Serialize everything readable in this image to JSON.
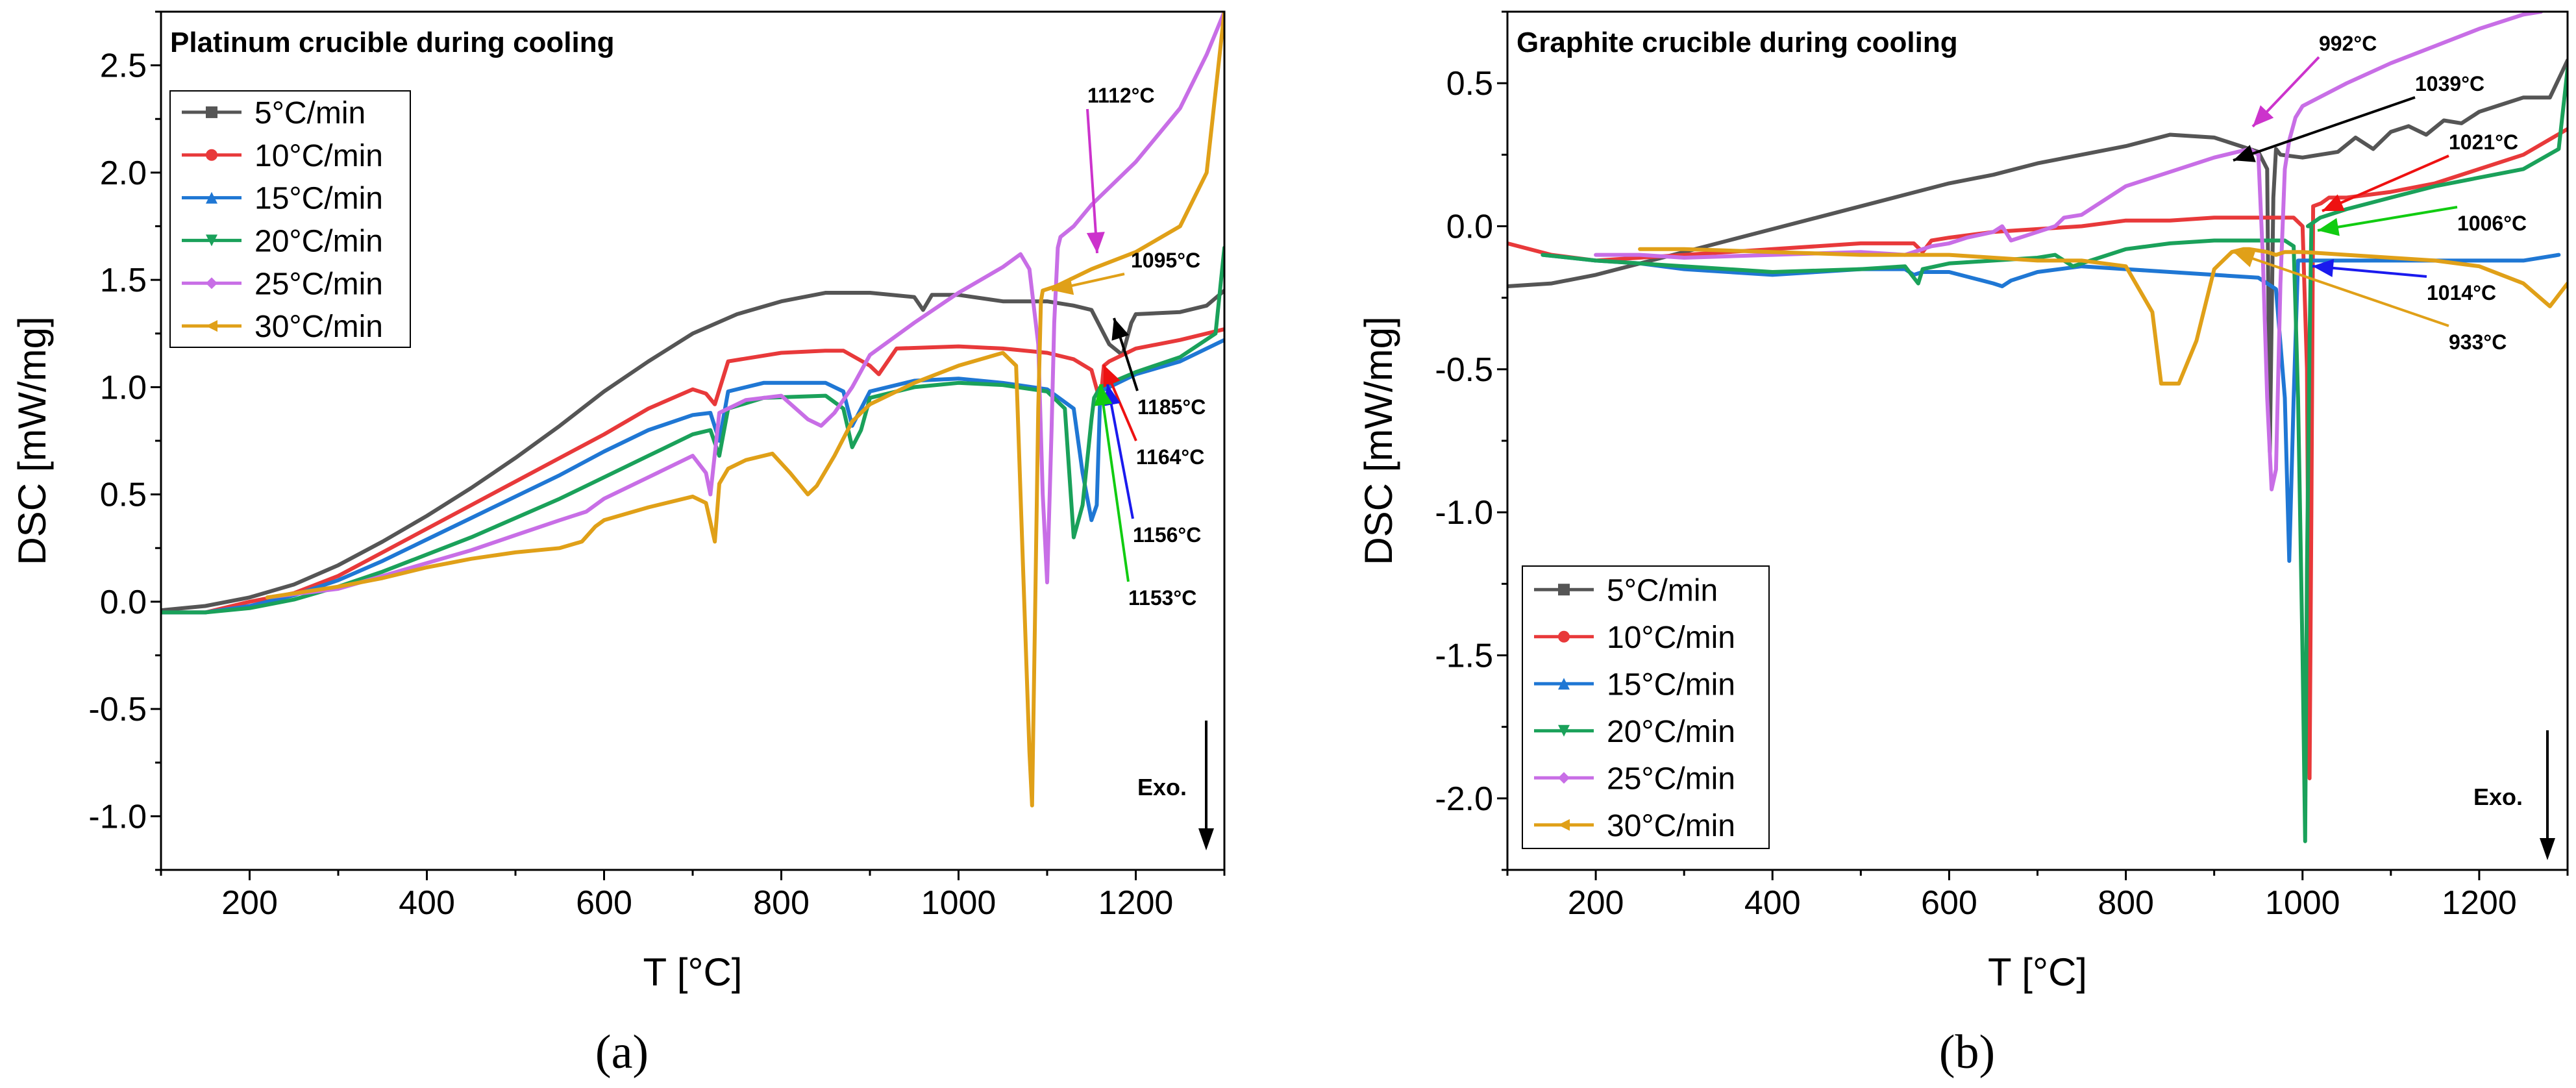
{
  "chart_data": [
    {
      "type": "line",
      "panel_label": "(a)",
      "title": "Platinum crucible during cooling",
      "xlabel": "T [°C]",
      "ylabel": "DSC [mW/mg]",
      "xlim": [
        100,
        1300
      ],
      "ylim": [
        -1.25,
        2.75
      ],
      "xticks": [
        200,
        400,
        600,
        800,
        1000,
        1200
      ],
      "yticks": [
        -1.0,
        -0.5,
        0.0,
        0.5,
        1.0,
        1.5,
        2.0,
        2.5
      ],
      "legend_position": "top-left",
      "exo_label": "Exo.",
      "series": [
        {
          "name": "5°C/min",
          "color": "#555555",
          "marker": "square",
          "x": [
            100,
            150,
            200,
            250,
            300,
            350,
            400,
            450,
            500,
            550,
            600,
            650,
            700,
            750,
            800,
            850,
            900,
            950,
            960,
            970,
            1000,
            1050,
            1100,
            1130,
            1150,
            1170,
            1185,
            1195,
            1200,
            1250,
            1280,
            1300
          ],
          "y": [
            -0.04,
            -0.02,
            0.02,
            0.08,
            0.17,
            0.28,
            0.4,
            0.53,
            0.67,
            0.82,
            0.98,
            1.12,
            1.25,
            1.34,
            1.4,
            1.44,
            1.44,
            1.42,
            1.36,
            1.43,
            1.43,
            1.4,
            1.4,
            1.38,
            1.36,
            1.2,
            1.15,
            1.3,
            1.34,
            1.35,
            1.38,
            1.45
          ]
        },
        {
          "name": "10°C/min",
          "color": "#e8393a",
          "marker": "circle",
          "x": [
            100,
            150,
            200,
            250,
            300,
            350,
            400,
            450,
            500,
            550,
            600,
            650,
            700,
            715,
            725,
            740,
            800,
            850,
            870,
            900,
            910,
            930,
            1000,
            1050,
            1100,
            1130,
            1150,
            1160,
            1164,
            1170,
            1200,
            1250,
            1300
          ],
          "y": [
            -0.05,
            -0.05,
            0.0,
            0.04,
            0.12,
            0.23,
            0.34,
            0.45,
            0.56,
            0.67,
            0.78,
            0.9,
            0.99,
            0.97,
            0.92,
            1.12,
            1.16,
            1.17,
            1.17,
            1.1,
            1.06,
            1.18,
            1.19,
            1.18,
            1.16,
            1.13,
            1.08,
            0.93,
            1.1,
            1.12,
            1.18,
            1.22,
            1.27
          ]
        },
        {
          "name": "15°C/min",
          "color": "#1f77d4",
          "marker": "triangle",
          "x": [
            100,
            150,
            200,
            250,
            300,
            350,
            400,
            450,
            500,
            550,
            600,
            650,
            700,
            720,
            730,
            740,
            780,
            850,
            870,
            880,
            900,
            950,
            1000,
            1050,
            1100,
            1130,
            1140,
            1150,
            1156,
            1160,
            1200,
            1250,
            1300
          ],
          "y": [
            -0.05,
            -0.05,
            -0.02,
            0.03,
            0.1,
            0.19,
            0.29,
            0.39,
            0.49,
            0.59,
            0.7,
            0.8,
            0.87,
            0.88,
            0.75,
            0.98,
            1.02,
            1.02,
            0.98,
            0.82,
            0.98,
            1.03,
            1.04,
            1.02,
            0.99,
            0.9,
            0.6,
            0.38,
            0.45,
            0.98,
            1.06,
            1.12,
            1.22
          ]
        },
        {
          "name": "20°C/min",
          "color": "#1aa15a",
          "marker": "inverted-triangle",
          "x": [
            100,
            150,
            200,
            250,
            300,
            350,
            400,
            450,
            500,
            550,
            600,
            650,
            700,
            720,
            730,
            740,
            780,
            850,
            870,
            880,
            890,
            900,
            950,
            1000,
            1050,
            1100,
            1120,
            1130,
            1140,
            1150,
            1153,
            1160,
            1200,
            1250,
            1290,
            1300
          ],
          "y": [
            -0.05,
            -0.05,
            -0.03,
            0.01,
            0.07,
            0.14,
            0.22,
            0.3,
            0.39,
            0.48,
            0.58,
            0.68,
            0.78,
            0.8,
            0.68,
            0.9,
            0.95,
            0.96,
            0.9,
            0.72,
            0.8,
            0.95,
            1.0,
            1.02,
            1.01,
            0.98,
            0.9,
            0.3,
            0.45,
            0.85,
            0.95,
            1.0,
            1.07,
            1.14,
            1.25,
            1.65
          ]
        },
        {
          "name": "25°C/min",
          "color": "#c86ee6",
          "marker": "diamond",
          "x": [
            220,
            300,
            350,
            400,
            450,
            500,
            550,
            580,
            600,
            650,
            700,
            715,
            720,
            730,
            760,
            800,
            830,
            845,
            860,
            880,
            900,
            950,
            1000,
            1050,
            1070,
            1080,
            1090,
            1095,
            1100,
            1105,
            1108,
            1112,
            1115,
            1130,
            1150,
            1200,
            1250,
            1280,
            1300
          ],
          "y": [
            0.02,
            0.06,
            0.12,
            0.18,
            0.24,
            0.31,
            0.38,
            0.42,
            0.48,
            0.58,
            0.68,
            0.6,
            0.5,
            0.88,
            0.94,
            0.96,
            0.85,
            0.82,
            0.88,
            1.0,
            1.15,
            1.3,
            1.44,
            1.56,
            1.62,
            1.55,
            1.2,
            0.5,
            0.09,
            0.8,
            1.3,
            1.65,
            1.7,
            1.75,
            1.85,
            2.05,
            2.3,
            2.55,
            2.75
          ]
        },
        {
          "name": "30°C/min",
          "color": "#e0a018",
          "marker": "left-triangle",
          "x": [
            220,
            300,
            350,
            400,
            450,
            500,
            550,
            575,
            590,
            600,
            650,
            700,
            715,
            725,
            730,
            740,
            760,
            790,
            810,
            830,
            840,
            860,
            880,
            900,
            950,
            1000,
            1050,
            1065,
            1070,
            1080,
            1083,
            1090,
            1093,
            1095,
            1110,
            1150,
            1200,
            1250,
            1280,
            1300
          ],
          "y": [
            0.02,
            0.07,
            0.11,
            0.16,
            0.2,
            0.23,
            0.25,
            0.28,
            0.35,
            0.38,
            0.44,
            0.49,
            0.46,
            0.28,
            0.55,
            0.62,
            0.66,
            0.69,
            0.6,
            0.5,
            0.54,
            0.68,
            0.84,
            0.92,
            1.02,
            1.1,
            1.16,
            1.1,
            0.5,
            -0.7,
            -0.95,
            0.9,
            1.4,
            1.45,
            1.47,
            1.55,
            1.63,
            1.75,
            2.0,
            2.75
          ]
        }
      ],
      "annotations": [
        {
          "text": "1112°C",
          "x": 1112,
          "y": 1.65,
          "color": "#cc33cc"
        },
        {
          "text": "1095°C",
          "x": 1095,
          "y": 1.45,
          "color": "#e0a018"
        },
        {
          "text": "1185°C",
          "x": 1185,
          "y": 1.35,
          "color": "#000000"
        },
        {
          "text": "1164°C",
          "x": 1164,
          "y": 1.1,
          "color": "#ee1111"
        },
        {
          "text": "1156°C",
          "x": 1156,
          "y": 1.06,
          "color": "#1a1aee"
        },
        {
          "text": "1153°C",
          "x": 1153,
          "y": 1.0,
          "color": "#11cc11"
        }
      ]
    },
    {
      "type": "line",
      "panel_label": "(b)",
      "title": "Graphite crucible during cooling",
      "xlabel": "T [°C]",
      "ylabel": "DSC [mW/mg]",
      "xlim": [
        100,
        1300
      ],
      "ylim": [
        -2.25,
        0.75
      ],
      "xticks": [
        200,
        400,
        600,
        800,
        1000,
        1200
      ],
      "yticks": [
        -2.0,
        -1.5,
        -1.0,
        -0.5,
        0.0,
        0.5
      ],
      "legend_position": "bottom-left",
      "exo_label": "Exo.",
      "series": [
        {
          "name": "5°C/min",
          "color": "#555555",
          "marker": "square",
          "x": [
            100,
            150,
            200,
            250,
            300,
            350,
            400,
            450,
            500,
            550,
            600,
            650,
            700,
            750,
            800,
            850,
            900,
            930,
            950,
            960,
            963,
            967,
            970,
            975,
            1000,
            1040,
            1060,
            1080,
            1100,
            1120,
            1140,
            1160,
            1180,
            1200,
            1220,
            1250,
            1280,
            1300
          ],
          "y": [
            -0.21,
            -0.2,
            -0.17,
            -0.13,
            -0.09,
            -0.05,
            -0.01,
            0.03,
            0.07,
            0.11,
            0.15,
            0.18,
            0.22,
            0.25,
            0.28,
            0.32,
            0.31,
            0.28,
            0.26,
            0.2,
            -0.79,
            0.1,
            0.27,
            0.25,
            0.24,
            0.26,
            0.31,
            0.27,
            0.33,
            0.35,
            0.32,
            0.37,
            0.36,
            0.4,
            0.42,
            0.45,
            0.45,
            0.58
          ]
        },
        {
          "name": "10°C/min",
          "color": "#e8393a",
          "marker": "circle",
          "x": [
            100,
            150,
            200,
            300,
            400,
            500,
            560,
            570,
            580,
            600,
            650,
            700,
            750,
            800,
            850,
            900,
            950,
            990,
            1000,
            1005,
            1008,
            1010,
            1012,
            1021,
            1030,
            1050,
            1100,
            1150,
            1200,
            1250,
            1300
          ],
          "y": [
            -0.06,
            -0.1,
            -0.12,
            -0.1,
            -0.08,
            -0.06,
            -0.06,
            -0.09,
            -0.05,
            -0.04,
            -0.02,
            -0.01,
            0.0,
            0.02,
            0.02,
            0.03,
            0.03,
            0.03,
            0.0,
            -0.5,
            -1.93,
            -1.0,
            0.07,
            0.08,
            0.1,
            0.1,
            0.12,
            0.15,
            0.2,
            0.25,
            0.34
          ]
        },
        {
          "name": "15°C/min",
          "color": "#1f77d4",
          "marker": "triangle",
          "x": [
            140,
            200,
            250,
            300,
            350,
            400,
            450,
            500,
            550,
            560,
            570,
            600,
            650,
            660,
            670,
            700,
            750,
            800,
            850,
            900,
            950,
            970,
            980,
            985,
            990,
            995,
            1000,
            1014,
            1030,
            1100,
            1150,
            1200,
            1250,
            1290
          ],
          "y": [
            -0.1,
            -0.12,
            -0.13,
            -0.15,
            -0.16,
            -0.17,
            -0.16,
            -0.15,
            -0.15,
            -0.17,
            -0.16,
            -0.16,
            -0.2,
            -0.21,
            -0.19,
            -0.16,
            -0.14,
            -0.15,
            -0.16,
            -0.17,
            -0.18,
            -0.22,
            -0.6,
            -1.17,
            -0.6,
            -0.12,
            -0.12,
            -0.12,
            -0.12,
            -0.12,
            -0.12,
            -0.12,
            -0.12,
            -0.1
          ]
        },
        {
          "name": "20°C/min",
          "color": "#1aa15a",
          "marker": "inverted-triangle",
          "x": [
            140,
            200,
            300,
            400,
            500,
            550,
            560,
            565,
            570,
            600,
            650,
            700,
            720,
            740,
            760,
            800,
            850,
            900,
            950,
            980,
            990,
            995,
            1000,
            1003,
            1005,
            1008,
            1010,
            1006,
            1020,
            1050,
            1100,
            1150,
            1200,
            1250,
            1290,
            1300
          ],
          "y": [
            -0.1,
            -0.12,
            -0.14,
            -0.16,
            -0.15,
            -0.14,
            -0.18,
            -0.2,
            -0.15,
            -0.13,
            -0.12,
            -0.11,
            -0.1,
            -0.14,
            -0.12,
            -0.08,
            -0.06,
            -0.05,
            -0.05,
            -0.05,
            -0.07,
            -0.6,
            -1.5,
            -2.15,
            -1.2,
            -0.4,
            0.0,
            0.0,
            0.03,
            0.06,
            0.1,
            0.14,
            0.17,
            0.2,
            0.27,
            0.55
          ]
        },
        {
          "name": "25°C/min",
          "color": "#c86ee6",
          "marker": "diamond",
          "x": [
            200,
            250,
            300,
            400,
            500,
            550,
            580,
            600,
            620,
            650,
            660,
            670,
            700,
            720,
            730,
            750,
            800,
            850,
            900,
            940,
            950,
            955,
            960,
            965,
            970,
            975,
            980,
            985,
            992,
            1000,
            1050,
            1100,
            1150,
            1200,
            1250,
            1270
          ],
          "y": [
            -0.1,
            -0.1,
            -0.11,
            -0.1,
            -0.09,
            -0.1,
            -0.07,
            -0.06,
            -0.04,
            -0.02,
            0.0,
            -0.05,
            -0.02,
            0.0,
            0.03,
            0.04,
            0.14,
            0.19,
            0.24,
            0.27,
            0.25,
            -0.1,
            -0.6,
            -0.92,
            -0.85,
            -0.2,
            0.2,
            0.3,
            0.38,
            0.42,
            0.5,
            0.57,
            0.63,
            0.69,
            0.74,
            0.75
          ]
        },
        {
          "name": "30°C/min",
          "color": "#e0a018",
          "marker": "left-triangle",
          "x": [
            250,
            300,
            400,
            500,
            600,
            700,
            750,
            800,
            830,
            840,
            860,
            880,
            900,
            920,
            933,
            940,
            960,
            970,
            980,
            1000,
            1050,
            1100,
            1150,
            1200,
            1250,
            1280,
            1300
          ],
          "y": [
            -0.08,
            -0.08,
            -0.09,
            -0.1,
            -0.1,
            -0.12,
            -0.12,
            -0.14,
            -0.3,
            -0.55,
            -0.55,
            -0.4,
            -0.15,
            -0.09,
            -0.08,
            -0.08,
            -0.09,
            -0.1,
            -0.09,
            -0.09,
            -0.1,
            -0.11,
            -0.12,
            -0.14,
            -0.2,
            -0.28,
            -0.2
          ]
        }
      ],
      "annotations": [
        {
          "text": "992°C",
          "x": 992,
          "y": 0.38,
          "color": "#cc33cc"
        },
        {
          "text": "1039°C",
          "x": 970,
          "y": 0.25,
          "color": "#000000"
        },
        {
          "text": "1021°C",
          "x": 1021,
          "y": 0.08,
          "color": "#ee1111"
        },
        {
          "text": "1006°C",
          "x": 1006,
          "y": 0.0,
          "color": "#11cc11"
        },
        {
          "text": "1014°C",
          "x": 1014,
          "y": -0.12,
          "color": "#1a1aee"
        },
        {
          "text": "933°C",
          "x": 933,
          "y": -0.08,
          "color": "#e0a018"
        }
      ]
    }
  ]
}
